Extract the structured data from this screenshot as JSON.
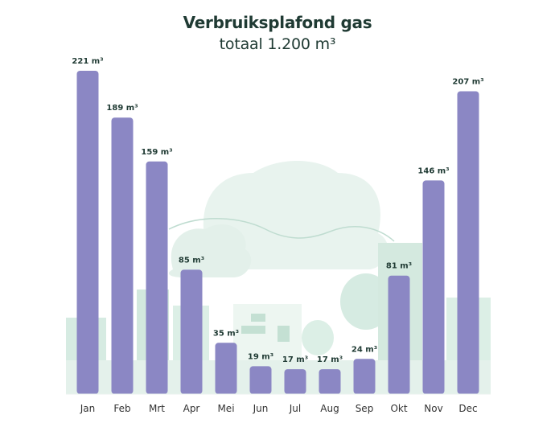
{
  "chart_data": {
    "type": "bar",
    "title": "Verbruiksplafond gas",
    "subtitle": "totaal 1.200 m³",
    "xlabel": "",
    "ylabel": "",
    "unit": "m³",
    "categories": [
      "Jan",
      "Feb",
      "Mrt",
      "Apr",
      "Mei",
      "Jun",
      "Jul",
      "Aug",
      "Sep",
      "Okt",
      "Nov",
      "Dec"
    ],
    "values": [
      221,
      189,
      159,
      85,
      35,
      19,
      17,
      17,
      24,
      81,
      146,
      207
    ],
    "data_labels": [
      "221 m³",
      "189 m³",
      "159 m³",
      "85 m³",
      "35 m³",
      "19 m³",
      "17 m³",
      "17 m³",
      "24 m³",
      "81 m³",
      "146 m³",
      "207 m³"
    ],
    "ylim": [
      0,
      221
    ],
    "grid": false,
    "legend": "none",
    "colors": {
      "bar": "#8b87c4",
      "text": "#1f3a33",
      "background_illustration": "#d9ece4"
    }
  }
}
